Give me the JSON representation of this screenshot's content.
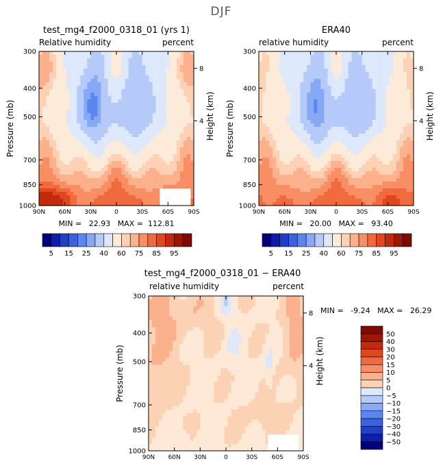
{
  "page": {
    "title": "DJF"
  },
  "colors": {
    "abs_palette": [
      "#00007f",
      "#0b1fa8",
      "#1f3fc8",
      "#3a62e0",
      "#5c86ee",
      "#86a9f5",
      "#b5caf8",
      "#dde8fb",
      "#fdebd9",
      "#fcd1b4",
      "#fbb18c",
      "#f88e63",
      "#f06a3e",
      "#e0471d",
      "#c22a0c",
      "#9c1607",
      "#7e0a04"
    ],
    "diff_palette": [
      "#00007f",
      "#0b1fa8",
      "#1f3fc8",
      "#3a62e0",
      "#5c86ee",
      "#86a9f5",
      "#b5caf8",
      "#dde8fb",
      "#fde9d6",
      "#fcd2b5",
      "#fbb18c",
      "#f88e63",
      "#f06a3e",
      "#e0471d",
      "#c22a0c",
      "#9c1607",
      "#7e0a04"
    ]
  },
  "panels": [
    {
      "id": "model",
      "title": "test_mg4_f2000_0318_01 (yrs 1)",
      "left_label": "Relative humidity",
      "right_label": "percent",
      "stats": "MIN =   22.93   MAX =  112.81"
    },
    {
      "id": "obs",
      "title": "ERA40",
      "left_label": "relative humidity",
      "right_label": "percent",
      "stats": "MIN =   20.00   MAX =   93.40"
    },
    {
      "id": "diff",
      "title": "test_mg4_f2000_0318_01 − ERA40",
      "left_label": "relative humidity",
      "right_label": "percent",
      "stats": "MIN =   -9.24   MAX =   26.29"
    }
  ],
  "chart_data": [
    {
      "type": "heatmap",
      "title": "test_mg4_f2000_0318_01 (yrs 1)",
      "subtitle_left": "Relative humidity",
      "subtitle_right": "percent",
      "ylabel": "Pressure (mb)",
      "ylabel_right": "Height (km)",
      "x_ticks": [
        "90N",
        "60N",
        "30N",
        "0",
        "30S",
        "60S",
        "90S"
      ],
      "y_ticks": [
        "300",
        "400",
        "500",
        "700",
        "850",
        "1000"
      ],
      "y_ticks_right": [
        "8",
        "4"
      ],
      "ylim": [
        1000,
        300
      ],
      "min": 22.93,
      "max": 112.81,
      "colorbar_levels": [
        5,
        10,
        15,
        20,
        25,
        30,
        40,
        50,
        60,
        65,
        70,
        75,
        80,
        85,
        90,
        95
      ],
      "colorbar_labels": [
        "5",
        "15",
        "25",
        "40",
        "60",
        "75",
        "85",
        "95"
      ]
    },
    {
      "type": "heatmap",
      "title": "ERA40",
      "subtitle_left": "relative humidity",
      "subtitle_right": "percent",
      "ylabel": "Pressure (mb)",
      "ylabel_right": "Height (km)",
      "x_ticks": [
        "90N",
        "60N",
        "30N",
        "0",
        "30S",
        "60S",
        "90S"
      ],
      "y_ticks": [
        "300",
        "400",
        "500",
        "700",
        "850",
        "1000"
      ],
      "y_ticks_right": [
        "8",
        "4"
      ],
      "ylim": [
        1000,
        300
      ],
      "min": 20.0,
      "max": 93.4,
      "colorbar_levels": [
        5,
        10,
        15,
        20,
        25,
        30,
        40,
        50,
        60,
        65,
        70,
        75,
        80,
        85,
        90,
        95
      ],
      "colorbar_labels": [
        "5",
        "15",
        "25",
        "40",
        "60",
        "75",
        "85",
        "95"
      ]
    },
    {
      "type": "heatmap",
      "title": "test_mg4_f2000_0318_01 − ERA40",
      "subtitle_left": "relative humidity",
      "subtitle_right": "percent",
      "ylabel": "Pressure (mb)",
      "ylabel_right": "Height (km)",
      "x_ticks": [
        "90N",
        "60N",
        "30N",
        "0",
        "30S",
        "60S",
        "90S"
      ],
      "y_ticks": [
        "300",
        "400",
        "500",
        "700",
        "850",
        "1000"
      ],
      "y_ticks_right": [
        "8",
        "4"
      ],
      "ylim": [
        1000,
        300
      ],
      "min": -9.24,
      "max": 26.29,
      "colorbar_labels": [
        "50",
        "40",
        "30",
        "20",
        "15",
        "10",
        "5",
        "0",
        "−5",
        "−10",
        "−15",
        "−20",
        "−30",
        "−40",
        "−50"
      ]
    }
  ]
}
